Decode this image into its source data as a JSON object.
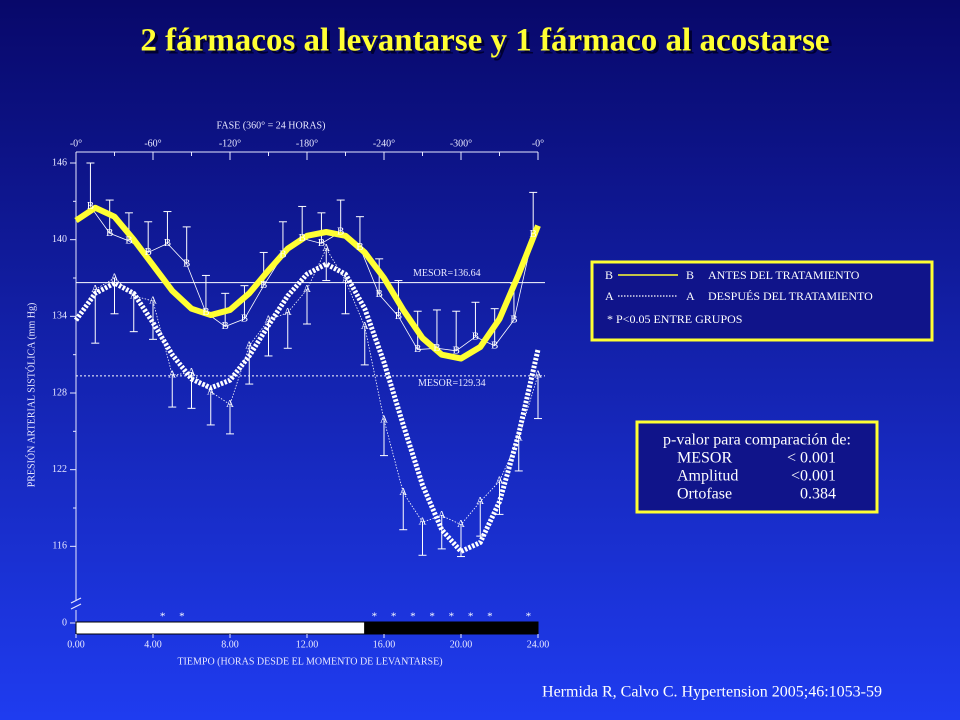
{
  "title": "2 fármacos al levantarse y 1 fármaco al acostarse",
  "citation": "Hermida R, Calvo C. Hypertension 2005;46:1053-59",
  "pvalue_box": {
    "title": "p-valor para comparación de:",
    "rows": [
      [
        "MESOR",
        "< 0.001"
      ],
      [
        "Amplitud",
        "<0.001"
      ],
      [
        "Ortofase",
        "0.384"
      ]
    ]
  },
  "chart_data": {
    "type": "cosinor",
    "xlabel": "TIEMPO (HORAS DESDE EL MOMENTO DE LEVANTARSE)",
    "ylabel": "PRESIÓN ARTERIAL SISTÓLICA (mm Hg)",
    "top_axis_title": "FASE (360° = 24 HORAS)",
    "xlim": [
      0,
      24
    ],
    "xticks": [
      {
        "value": 0,
        "label": "0.00"
      },
      {
        "value": 4,
        "label": "4.00"
      },
      {
        "value": 8,
        "label": "8.00"
      },
      {
        "value": 12,
        "label": "12.00"
      },
      {
        "value": 16,
        "label": "16.00"
      },
      {
        "value": 20,
        "label": "20.00"
      },
      {
        "value": 24,
        "label": "24.00"
      }
    ],
    "xticks_minor": [
      2,
      6,
      10,
      14,
      18,
      22
    ],
    "top_ticks": [
      {
        "value": 0,
        "label": "-0°"
      },
      {
        "value": 4,
        "label": "-60°"
      },
      {
        "value": 8,
        "label": "-120°"
      },
      {
        "value": 12,
        "label": "-180°"
      },
      {
        "value": 16,
        "label": "-240°"
      },
      {
        "value": 20,
        "label": "-300°"
      },
      {
        "value": 24,
        "label": "-0°"
      }
    ],
    "ylim": [
      110,
      146
    ],
    "yticks": [
      {
        "value": 110,
        "label": "0"
      },
      116,
      122,
      128,
      134,
      140,
      146
    ],
    "yticks_minor": [
      119,
      125,
      131,
      137,
      143
    ],
    "dark_start": 15,
    "significance": [
      {
        "x": 4.5,
        "label": "*"
      },
      {
        "x": 5.5,
        "label": "*"
      },
      {
        "x": 15.5,
        "label": "*"
      },
      {
        "x": 16.5,
        "label": "*"
      },
      {
        "x": 17.5,
        "label": "*"
      },
      {
        "x": 18.5,
        "label": "*"
      },
      {
        "x": 19.5,
        "label": "*"
      },
      {
        "x": 20.5,
        "label": "*"
      },
      {
        "x": 21.5,
        "label": "*"
      },
      {
        "x": 23.5,
        "label": "*"
      }
    ],
    "legend_note": "* P<0.05 ENTRE GRUPOS",
    "fit_x": [
      0,
      1,
      2,
      3,
      4,
      5,
      6,
      7,
      8,
      9,
      10,
      11,
      12,
      13,
      14,
      15,
      16,
      17,
      18,
      19,
      20,
      21,
      22,
      23,
      24
    ],
    "series": [
      {
        "name": "ANTES DEL TRATAMIENTO",
        "marker": "B",
        "color": "#ffff33",
        "error_direction": "up",
        "x": [
          0.75,
          1.75,
          2.75,
          3.75,
          4.75,
          5.75,
          6.75,
          7.75,
          8.75,
          9.75,
          10.75,
          11.75,
          12.75,
          13.75,
          14.75,
          15.75,
          16.75,
          17.75,
          18.75,
          19.75,
          20.75,
          21.75,
          22.75,
          23.75
        ],
        "values": [
          142.6,
          140.5,
          139.9,
          139.0,
          139.7,
          138.1,
          134.3,
          133.2,
          133.8,
          136.4,
          138.8,
          140.1,
          139.7,
          140.6,
          139.4,
          135.7,
          134.0,
          131.4,
          131.5,
          131.3,
          132.4,
          131.7,
          133.7,
          140.4
        ],
        "errors": [
          3.4,
          2.6,
          2.2,
          2.4,
          2.5,
          2.9,
          2.9,
          2.6,
          2.6,
          2.6,
          2.6,
          2.5,
          2.4,
          2.5,
          2.4,
          2.8,
          2.8,
          3.0,
          3.0,
          3.1,
          2.7,
          2.9,
          2.9,
          3.3
        ],
        "fit": [
          141.5,
          142.5,
          141.8,
          140.0,
          138.0,
          136.0,
          134.6,
          134.1,
          134.5,
          135.8,
          137.6,
          139.3,
          140.3,
          140.6,
          140.3,
          139.0,
          137.0,
          134.5,
          132.3,
          131.0,
          130.7,
          131.6,
          133.8,
          137.3,
          141.1
        ],
        "mesor": {
          "value": 136.64,
          "label": "MESOR=136.64"
        }
      },
      {
        "name": "DESPUÉS DEL TRATAMIENTO",
        "marker": "A",
        "color": "#ffffff",
        "error_direction": "down",
        "x": [
          1,
          2,
          3,
          4,
          5,
          6,
          7,
          8,
          9,
          10,
          11,
          12,
          13,
          14,
          15,
          16,
          17,
          18,
          19,
          20,
          21,
          22,
          23,
          24
        ],
        "values": [
          136.1,
          137.0,
          135.6,
          135.2,
          129.4,
          129.6,
          128.1,
          127.1,
          131.7,
          133.7,
          134.3,
          136.1,
          139.3,
          136.8,
          133.2,
          125.9,
          120.2,
          117.9,
          118.4,
          117.7,
          119.5,
          121.1,
          124.5,
          129.4
        ],
        "errors": [
          4.2,
          2.8,
          2.8,
          3.0,
          2.5,
          2.8,
          2.6,
          2.3,
          3.0,
          2.8,
          2.8,
          2.7,
          2.5,
          2.6,
          3.0,
          2.8,
          2.9,
          2.6,
          2.6,
          2.5,
          2.7,
          2.6,
          2.6,
          3.4
        ],
        "fit": [
          133.7,
          135.8,
          136.6,
          135.8,
          133.5,
          131.0,
          129.1,
          128.4,
          129.0,
          130.9,
          133.3,
          135.6,
          137.3,
          138.1,
          137.3,
          134.6,
          130.4,
          125.5,
          120.8,
          117.3,
          115.6,
          116.3,
          119.5,
          124.8,
          131.4
        ],
        "mesor": {
          "value": 129.34,
          "label": "MESOR=129.34"
        }
      }
    ]
  }
}
